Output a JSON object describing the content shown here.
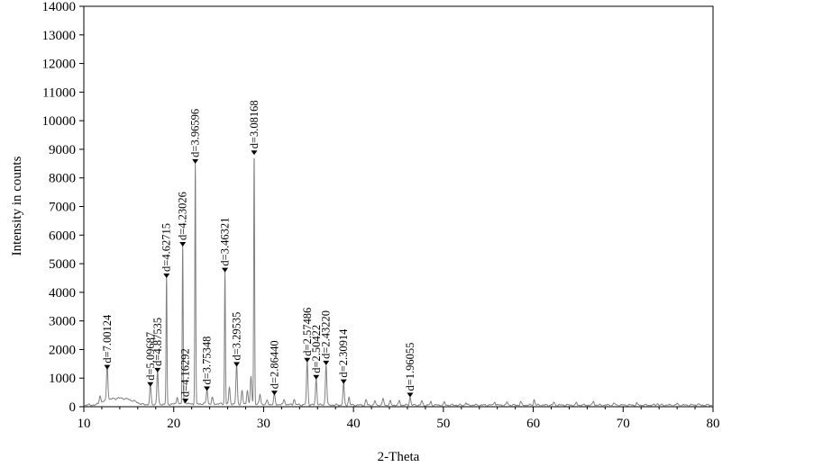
{
  "chart_data": {
    "type": "line",
    "title": "",
    "xlabel": "2-Theta",
    "ylabel": "Intensity in counts",
    "xlim": [
      10,
      80
    ],
    "ylim": [
      0,
      14000
    ],
    "x_ticks": [
      10,
      20,
      30,
      40,
      50,
      60,
      70,
      80
    ],
    "y_ticks": [
      0,
      1000,
      2000,
      3000,
      4000,
      5000,
      6000,
      7000,
      8000,
      9000,
      10000,
      11000,
      12000,
      13000,
      14000
    ],
    "grid": false,
    "line_color": "#808080",
    "peaks": [
      {
        "x": 12.6,
        "y": 1300,
        "label": "d=7.00124"
      },
      {
        "x": 17.4,
        "y": 700,
        "label": "d=5.09687"
      },
      {
        "x": 18.2,
        "y": 1200,
        "label": "d=4.87535"
      },
      {
        "x": 19.2,
        "y": 4500,
        "label": "d=4.62715"
      },
      {
        "x": 21.0,
        "y": 5600,
        "label": "d=4.23026"
      },
      {
        "x": 21.3,
        "y": 120,
        "label": "d=4.16292"
      },
      {
        "x": 22.4,
        "y": 8500,
        "label": "d=3.96596"
      },
      {
        "x": 23.7,
        "y": 550,
        "label": "d=3.75348"
      },
      {
        "x": 25.7,
        "y": 4700,
        "label": "d=3.46321"
      },
      {
        "x": 27.0,
        "y": 1400,
        "label": "d=3.29535"
      },
      {
        "x": 28.95,
        "y": 8800,
        "label": "d=3.08168"
      },
      {
        "x": 31.2,
        "y": 400,
        "label": "d=2.86440"
      },
      {
        "x": 34.85,
        "y": 1550,
        "label": "d=2.57486"
      },
      {
        "x": 35.85,
        "y": 950,
        "label": "d=2.50422"
      },
      {
        "x": 36.95,
        "y": 1450,
        "label": "d=2.43220"
      },
      {
        "x": 38.9,
        "y": 800,
        "label": "d=2.30914"
      },
      {
        "x": 46.3,
        "y": 330,
        "label": "d=1.96055"
      }
    ],
    "minor_peaks": [
      {
        "x": 11.8,
        "y": 320
      },
      {
        "x": 20.4,
        "y": 300
      },
      {
        "x": 24.3,
        "y": 250
      },
      {
        "x": 26.2,
        "y": 600
      },
      {
        "x": 27.6,
        "y": 500
      },
      {
        "x": 28.2,
        "y": 550
      },
      {
        "x": 28.6,
        "y": 1000
      },
      {
        "x": 29.6,
        "y": 380
      },
      {
        "x": 30.4,
        "y": 180
      },
      {
        "x": 32.3,
        "y": 230
      },
      {
        "x": 33.4,
        "y": 250
      },
      {
        "x": 39.5,
        "y": 320
      },
      {
        "x": 41.4,
        "y": 230
      },
      {
        "x": 42.4,
        "y": 180
      },
      {
        "x": 43.3,
        "y": 270
      },
      {
        "x": 44.1,
        "y": 170
      },
      {
        "x": 45.1,
        "y": 200
      },
      {
        "x": 47.6,
        "y": 180
      },
      {
        "x": 48.6,
        "y": 150
      },
      {
        "x": 50.1,
        "y": 130
      },
      {
        "x": 52.5,
        "y": 120
      },
      {
        "x": 55.7,
        "y": 170
      },
      {
        "x": 57.1,
        "y": 150
      },
      {
        "x": 58.6,
        "y": 160
      },
      {
        "x": 60.1,
        "y": 230
      },
      {
        "x": 62.3,
        "y": 130
      },
      {
        "x": 64.8,
        "y": 110
      },
      {
        "x": 66.7,
        "y": 180
      },
      {
        "x": 69.0,
        "y": 110
      },
      {
        "x": 71.5,
        "y": 100
      },
      {
        "x": 73.8,
        "y": 100
      },
      {
        "x": 76.0,
        "y": 90
      },
      {
        "x": 78.3,
        "y": 90
      }
    ]
  }
}
